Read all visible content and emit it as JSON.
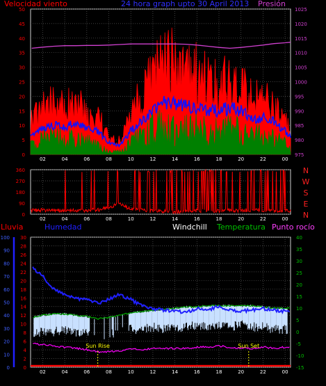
{
  "header": {
    "left_label": "Velocidad viento",
    "center_label": "24 hora graph upto 30 April 2013",
    "right_label": "Presión"
  },
  "colors": {
    "background": "#000000",
    "grid": "#5a5a5a",
    "wind_gust": "#ff0000",
    "wind_avg": "#1010ff",
    "wind_speed": "#008000",
    "pressure": "#d040d0",
    "direction": "#ff0000",
    "rain": "#ff0000",
    "humidity": "#2020ff",
    "windchill": "#ffffff",
    "temperature": "#00a000",
    "dewpoint": "#ff00ff",
    "temp_band": "#c8e0ff",
    "sun_marker": "#ffff00"
  },
  "directions": [
    "N",
    "W",
    "S",
    "E",
    "N"
  ],
  "sun": {
    "rise_label": "Sun Rise",
    "set_label": "Sun Set",
    "rise_hour": 7.0,
    "set_hour": 20.7
  },
  "x_axis": {
    "hours": [
      2,
      4,
      6,
      8,
      10,
      12,
      14,
      16,
      18,
      20,
      22,
      24
    ],
    "tick_labels": [
      "02",
      "04",
      "06",
      "08",
      "10",
      "12",
      "14",
      "16",
      "18",
      "20",
      "22",
      "00"
    ],
    "range": [
      0.9,
      24.5
    ]
  },
  "chart_data": [
    {
      "type": "line",
      "name_left": "Velocidad viento",
      "name_right": "Presión",
      "ylim_left": [
        0,
        50
      ],
      "yticks_left": [
        "0",
        "5",
        "10",
        "15",
        "20",
        "25",
        "30",
        "35",
        "40",
        "45",
        "50"
      ],
      "ylim_right": [
        975,
        1025
      ],
      "yticks_right": [
        "975",
        "980",
        "985",
        "990",
        "995",
        "1000",
        "1005",
        "1010",
        "1015",
        "1020",
        "1025"
      ],
      "x": [
        1,
        2,
        3,
        4,
        5,
        6,
        7,
        8,
        9,
        10,
        11,
        12,
        13,
        14,
        15,
        16,
        17,
        18,
        19,
        20,
        21,
        22,
        23,
        24,
        24.5
      ],
      "series": [
        {
          "key": "gust",
          "values": [
            12,
            17,
            19,
            17,
            20,
            15,
            14,
            6,
            5,
            15,
            22,
            30,
            35,
            33,
            32,
            30,
            27,
            26,
            28,
            25,
            20,
            21,
            17,
            12,
            9
          ]
        },
        {
          "key": "avg",
          "values": [
            6,
            9,
            10,
            9,
            11,
            9,
            8,
            4,
            3,
            8,
            12,
            15,
            18,
            17,
            17,
            16,
            15,
            15,
            16,
            15,
            12,
            13,
            11,
            8,
            6
          ]
        },
        {
          "key": "speed",
          "values": [
            3,
            5,
            5,
            5,
            5,
            4,
            3,
            1,
            1,
            4,
            6,
            8,
            9,
            8,
            8,
            8,
            7,
            7,
            8,
            7,
            6,
            6,
            5,
            4,
            2
          ]
        },
        {
          "key": "pressure",
          "values": [
            1011.5,
            1011.9,
            1012.2,
            1012.4,
            1012.4,
            1012.5,
            1012.5,
            1012.6,
            1012.8,
            1013,
            1013,
            1013,
            1013,
            1013,
            1012.9,
            1012.6,
            1012.2,
            1011.8,
            1011.5,
            1011.8,
            1012.2,
            1012.6,
            1013.1,
            1013.4,
            1013.6
          ]
        }
      ]
    },
    {
      "type": "line",
      "name": "direction",
      "ylim": [
        0,
        360
      ],
      "yticks": [
        "0",
        "90",
        "180",
        "270",
        "360"
      ],
      "x": [
        1,
        2,
        3,
        4,
        5,
        6,
        7,
        8,
        9,
        10,
        11,
        12,
        13,
        14,
        15,
        16,
        17,
        18,
        19,
        20,
        21,
        22,
        23,
        24,
        24.5
      ],
      "values": [
        30,
        35,
        30,
        28,
        30,
        32,
        35,
        55,
        85,
        40,
        30,
        25,
        25,
        20,
        25,
        30,
        25,
        28,
        30,
        30,
        35,
        30,
        28,
        30,
        30
      ]
    },
    {
      "type": "line",
      "name_rain": "Lluvia",
      "name_humidity": "Humedad",
      "name_windchill": "Windchill",
      "name_temperature": "Temperatura",
      "name_dewpoint": "Punto rocío",
      "ylim_rain": [
        0,
        100
      ],
      "yticks_rain": [
        "0",
        "10",
        "20",
        "30",
        "40",
        "50",
        "60",
        "70",
        "80",
        "90",
        "100"
      ],
      "ylim_left": [
        0,
        30
      ],
      "yticks_left": [
        "0",
        "2",
        "4",
        "6",
        "8",
        "10",
        "12",
        "14",
        "16",
        "18",
        "20",
        "22",
        "24",
        "26",
        "28",
        "30"
      ],
      "ylim_right": [
        -15,
        40
      ],
      "yticks_right": [
        "-15",
        "-10",
        "-5",
        "0",
        "5",
        "10",
        "15",
        "20",
        "25",
        "30",
        "35",
        "40"
      ],
      "x": [
        1,
        2,
        3,
        4,
        5,
        6,
        7,
        8,
        9,
        10,
        11,
        12,
        13,
        14,
        15,
        16,
        17,
        18,
        19,
        20,
        21,
        22,
        23,
        24,
        24.5
      ],
      "series": [
        {
          "key": "rain",
          "values": [
            0,
            0,
            0,
            0,
            0,
            0,
            0,
            0,
            0,
            0,
            0,
            0,
            0,
            0,
            0,
            0,
            0,
            0,
            0,
            0,
            0,
            0,
            0,
            0,
            0
          ]
        },
        {
          "key": "humidity",
          "values": [
            77,
            70,
            60,
            56,
            53,
            52,
            49,
            52,
            56,
            52,
            47,
            45,
            44,
            43,
            42,
            45,
            44,
            47,
            44,
            43,
            44,
            45,
            44,
            43,
            42
          ]
        },
        {
          "key": "temperature",
          "values": [
            6,
            7,
            7.5,
            7.5,
            7,
            6.5,
            5.5,
            6,
            7,
            8,
            8.5,
            9,
            9.5,
            10,
            10.5,
            10.5,
            11,
            11,
            11,
            11,
            11,
            10.5,
            10,
            10,
            10
          ]
        },
        {
          "key": "windchill",
          "values": [
            3,
            4,
            4,
            5,
            4,
            4,
            1.5,
            3,
            4,
            5,
            5,
            6,
            5,
            6,
            6,
            7,
            6,
            7,
            6,
            7,
            6,
            6,
            5,
            5,
            5
          ]
        },
        {
          "key": "dewpoint",
          "values": [
            -5,
            -5.5,
            -6,
            -6.5,
            -7,
            -7.5,
            -8.5,
            -8.5,
            -8,
            -7.5,
            -7.5,
            -7,
            -7,
            -7,
            -7,
            -6.5,
            -6.5,
            -6,
            -6.5,
            -7,
            -7,
            -6.5,
            -7,
            -6.5,
            -6.5
          ]
        }
      ]
    }
  ]
}
